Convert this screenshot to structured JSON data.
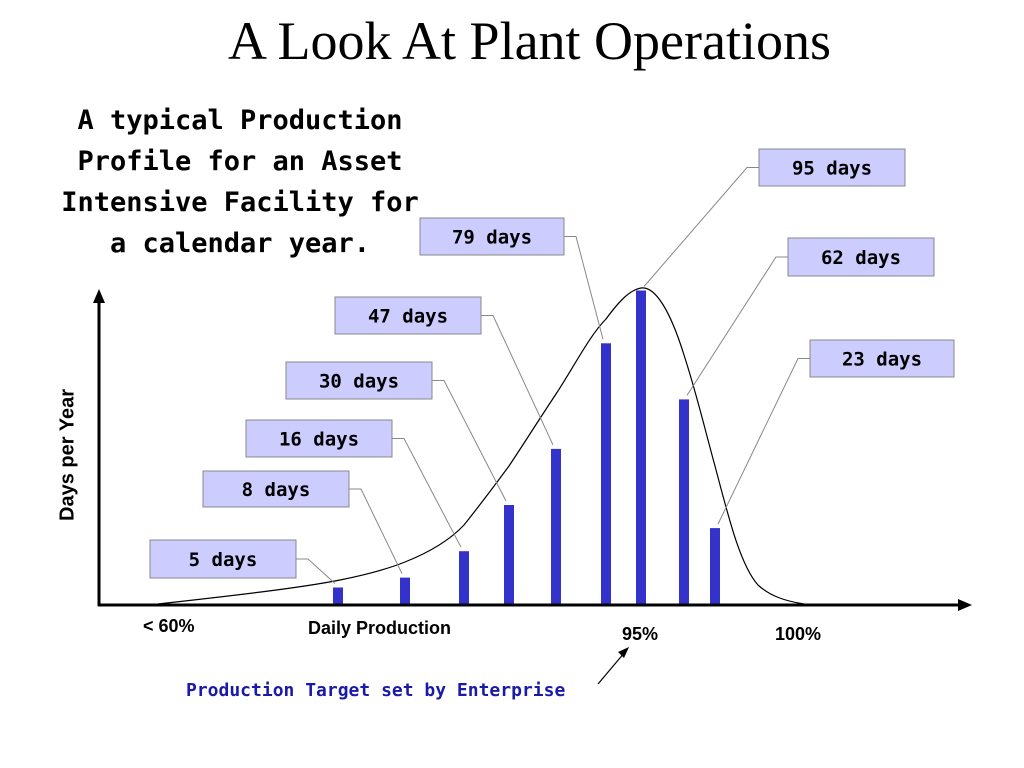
{
  "title": "A Look At Plant Operations",
  "subtitle": "A typical Production\nProfile for an Asset\nIntensive Facility for\na calendar year.",
  "colors": {
    "bar": "#3333cc",
    "callout_bg": "#ccccff",
    "axis": "#000000",
    "target_text": "#1a1aa8"
  },
  "chart_data": {
    "type": "bar",
    "ylabel": "Days per Year",
    "xlabel": "Daily Production",
    "x_tick_labels": [
      "< 60%",
      "95%",
      "100%"
    ],
    "values": [
      5,
      8,
      16,
      30,
      47,
      79,
      95,
      62,
      23
    ],
    "data_labels": [
      "5 days",
      "8 days",
      "16 days",
      "30 days",
      "47 days",
      "79 days",
      "95 days",
      "62 days",
      "23 days"
    ],
    "overlay": "smooth distribution curve",
    "annotation": "Production Target set by Enterprise",
    "annotation_points_to": "95%"
  }
}
